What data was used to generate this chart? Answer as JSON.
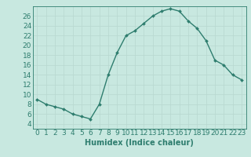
{
  "x": [
    0,
    1,
    2,
    3,
    4,
    5,
    6,
    7,
    8,
    9,
    10,
    11,
    12,
    13,
    14,
    15,
    16,
    17,
    18,
    19,
    20,
    21,
    22,
    23
  ],
  "y": [
    9,
    8,
    7.5,
    7,
    6,
    5.5,
    5,
    8,
    14,
    18.5,
    22,
    23,
    24.5,
    26,
    27,
    27.5,
    27,
    25,
    23.5,
    21,
    17,
    16,
    14,
    13
  ],
  "line_color": "#2e7d6e",
  "marker_color": "#2e7d6e",
  "bg_color": "#c8e8e0",
  "grid_color": "#b8d8d0",
  "xlabel": "Humidex (Indice chaleur)",
  "xlim": [
    -0.5,
    23.5
  ],
  "ylim": [
    3,
    28
  ],
  "xticks": [
    0,
    1,
    2,
    3,
    4,
    5,
    6,
    7,
    8,
    9,
    10,
    11,
    12,
    13,
    14,
    15,
    16,
    17,
    18,
    19,
    20,
    21,
    22,
    23
  ],
  "yticks": [
    4,
    6,
    8,
    10,
    12,
    14,
    16,
    18,
    20,
    22,
    24,
    26
  ],
  "xlabel_fontsize": 7,
  "tick_fontsize": 6.5
}
